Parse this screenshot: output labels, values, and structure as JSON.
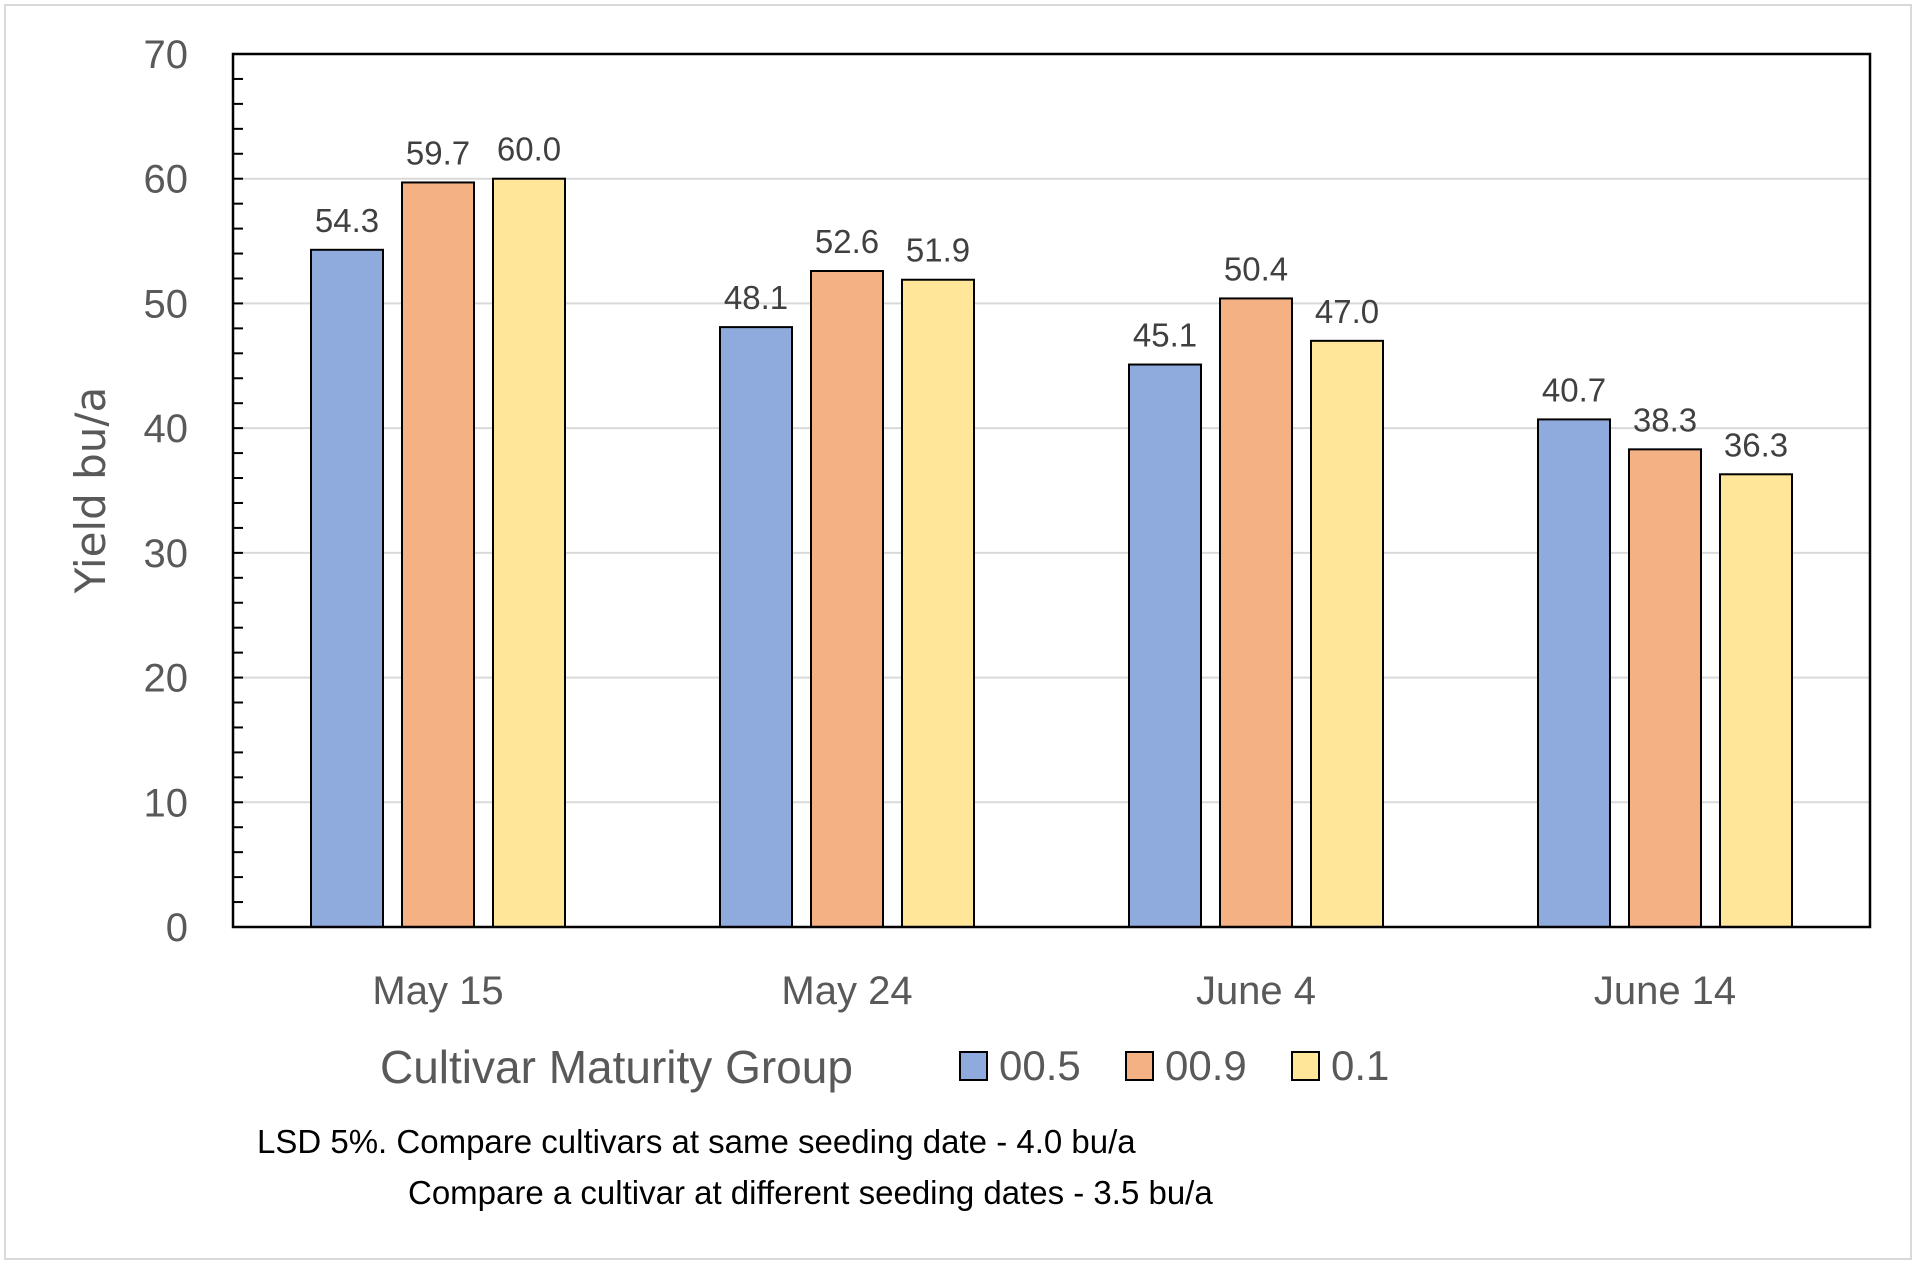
{
  "chart_data": {
    "type": "bar",
    "categories": [
      "May 15",
      "May 24",
      "June 4",
      "June 14"
    ],
    "series": [
      {
        "name": "00.5",
        "color": "#8faadc",
        "values": [
          54.3,
          48.1,
          45.1,
          40.7
        ]
      },
      {
        "name": "00.9",
        "color": "#f4b183",
        "values": [
          59.7,
          52.6,
          50.4,
          38.3
        ]
      },
      {
        "name": "0.1",
        "color": "#ffe699",
        "values": [
          60.0,
          51.9,
          47.0,
          36.3
        ]
      }
    ],
    "data_labels": [
      [
        "54.3",
        "48.1",
        "45.1",
        "40.7"
      ],
      [
        "59.7",
        "52.6",
        "50.4",
        "38.3"
      ],
      [
        "60.0",
        "51.9",
        "47.0",
        "36.3"
      ]
    ],
    "ylabel": "Yield bu/a",
    "ylim": [
      0,
      70
    ],
    "yticks": [
      "0",
      "10",
      "20",
      "30",
      "40",
      "50",
      "60",
      "70"
    ],
    "grid": true,
    "legend_title": "Cultivar Maturity Group",
    "legend_position": "bottom"
  },
  "notes": {
    "line1": "LSD 5%.  Compare cultivars at same seeding date - 4.0 bu/a",
    "line2": "Compare a cultivar at different seeding dates - 3.5 bu/a"
  }
}
